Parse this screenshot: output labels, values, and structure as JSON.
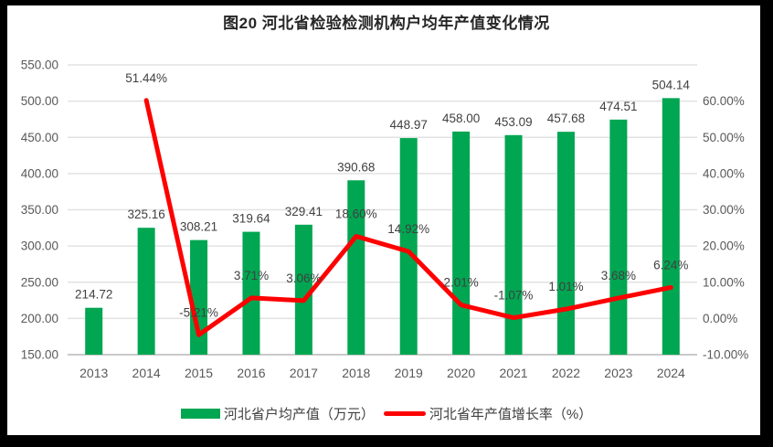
{
  "figure": {
    "title": "图20 河北省检验检测机构户均年产值变化情况"
  },
  "legend": {
    "items": [
      {
        "label": "河北省户均产值（万元）",
        "swatch": "bar",
        "color": "#00A651"
      },
      {
        "label": "河北省年产值增长率（%）",
        "swatch": "line",
        "color": "#FF0000"
      }
    ]
  },
  "colors": {
    "bar": "#00A651",
    "line": "#FF0000",
    "gridline": "#E2E2E2",
    "axis_line": "#C9C9C9",
    "tick_label": "#595959",
    "data_label": "#404040",
    "background": "#FFFFFF",
    "frame": "#000000"
  },
  "chart_data": {
    "type": "bar",
    "subtype": "bar-line-combo",
    "title": "图20 河北省检验检测机构户均年产值变化情况",
    "categories": [
      "2013",
      "2014",
      "2015",
      "2016",
      "2017",
      "2018",
      "2019",
      "2020",
      "2021",
      "2022",
      "2023",
      "2024"
    ],
    "series": [
      {
        "name": "河北省户均产值（万元）",
        "type": "bar",
        "axis": "left",
        "color": "#00A651",
        "values": [
          214.72,
          325.16,
          308.21,
          319.64,
          329.41,
          390.68,
          448.97,
          458.0,
          453.09,
          457.68,
          474.51,
          504.14
        ],
        "labels": [
          "214.72",
          "325.16",
          "308.21",
          "319.64",
          "329.41",
          "390.68",
          "448.97",
          "458.00",
          "453.09",
          "457.68",
          "474.51",
          "504.14"
        ]
      },
      {
        "name": "河北省年产值增长率（%）",
        "type": "line",
        "axis": "right",
        "color": "#FF0000",
        "values": [
          null,
          51.44,
          -5.21,
          3.71,
          3.06,
          18.6,
          14.92,
          2.01,
          -1.07,
          1.01,
          3.68,
          6.24
        ],
        "labels": [
          "",
          "51.44%",
          "-5.21%",
          "3.71%",
          "3.06%",
          "18.60%",
          "14.92%",
          "2.01%",
          "-1.07%",
          "1.01%",
          "3.68%",
          "6.24%"
        ]
      }
    ],
    "left_axis": {
      "min": 150,
      "max": 550,
      "step": 50,
      "tick_labels": [
        "150.00",
        "200.00",
        "250.00",
        "300.00",
        "350.00",
        "400.00",
        "450.00",
        "500.00",
        "550.00"
      ]
    },
    "right_axis": {
      "min": -10,
      "max": 60,
      "step": 10,
      "tick_labels": [
        "-10.00%",
        "0.00%",
        "10.00%",
        "20.00%",
        "30.00%",
        "40.00%",
        "50.00%",
        "60.00%"
      ]
    },
    "grid": true,
    "legend_position": "bottom"
  }
}
